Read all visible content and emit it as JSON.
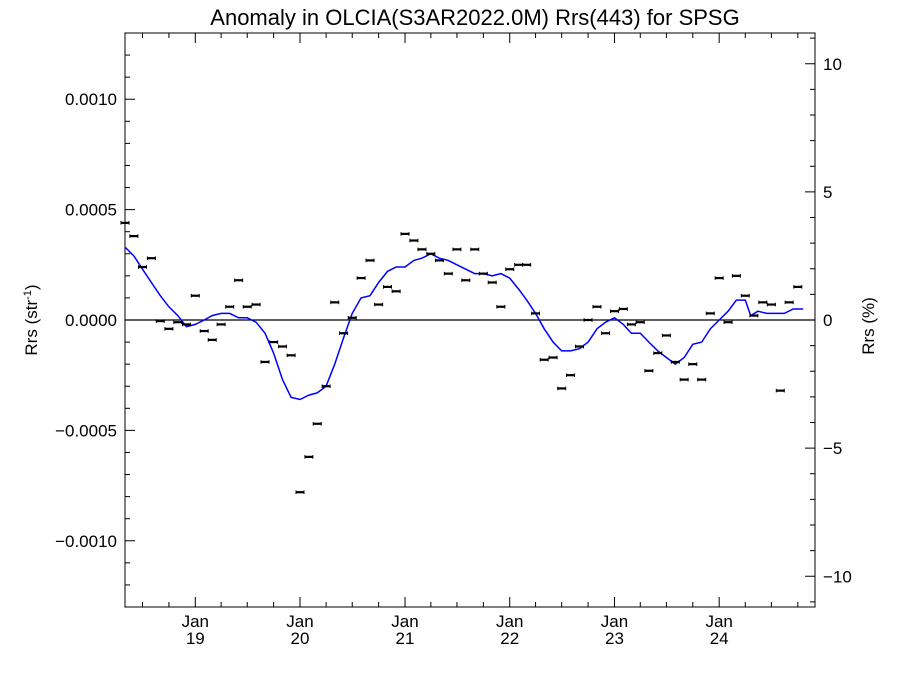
{
  "chart_data": {
    "type": "scatter",
    "title": "Anomaly in OLCIA(S3AR2022.0M) Rrs(443) for SPSG",
    "ylabel_left": "Rrs (str",
    "ylabel_left_sup": "-1",
    "ylabel_left_close": ")",
    "ylabel_right": "Rrs (%)",
    "xlim": [
      "2018-05-01",
      "2024-11-30"
    ],
    "ylim_left": [
      -0.0013,
      0.0013
    ],
    "ylim_right": [
      -11.2,
      11.2
    ],
    "grid": false,
    "left_ticks": [
      {
        "value": -0.001,
        "label": "−0.0010"
      },
      {
        "value": -0.0005,
        "label": "−0.0005"
      },
      {
        "value": 0,
        "label": "0.0000"
      },
      {
        "value": 0.0005,
        "label": "0.0005"
      },
      {
        "value": 0.001,
        "label": "0.0010"
      }
    ],
    "right_ticks": [
      {
        "value": -10,
        "label": "−10"
      },
      {
        "value": -5,
        "label": "−5"
      },
      {
        "value": 0,
        "label": "0"
      },
      {
        "value": 5,
        "label": "5"
      },
      {
        "value": 10,
        "label": "10"
      }
    ],
    "x_ticks": [
      {
        "value": "2019-01-01",
        "label1": "Jan",
        "label2": "19"
      },
      {
        "value": "2020-01-01",
        "label1": "Jan",
        "label2": "20"
      },
      {
        "value": "2021-01-01",
        "label1": "Jan",
        "label2": "21"
      },
      {
        "value": "2022-01-01",
        "label1": "Jan",
        "label2": "22"
      },
      {
        "value": "2023-01-01",
        "label1": "Jan",
        "label2": "23"
      },
      {
        "value": "2024-01-01",
        "label1": "Jan",
        "label2": "24"
      }
    ],
    "zero_line": 0,
    "series": [
      {
        "kind": "monthly_anomaly_points",
        "color": "#000000",
        "points": [
          [
            "2018-05-01",
            0.00044
          ],
          [
            "2018-06-01",
            0.00038
          ],
          [
            "2018-07-01",
            0.00024
          ],
          [
            "2018-08-01",
            0.00028
          ],
          [
            "2018-09-01",
            -5e-06
          ],
          [
            "2018-10-01",
            -4e-05
          ],
          [
            "2018-11-01",
            -1e-05
          ],
          [
            "2018-12-01",
            -2e-05
          ],
          [
            "2019-01-01",
            0.00011
          ],
          [
            "2019-02-01",
            -5e-05
          ],
          [
            "2019-03-01",
            -9e-05
          ],
          [
            "2019-04-01",
            -2e-05
          ],
          [
            "2019-05-01",
            6e-05
          ],
          [
            "2019-06-01",
            0.00018
          ],
          [
            "2019-07-01",
            6e-05
          ],
          [
            "2019-08-01",
            7e-05
          ],
          [
            "2019-09-01",
            -0.00019
          ],
          [
            "2019-10-01",
            -0.0001
          ],
          [
            "2019-11-01",
            -0.00012
          ],
          [
            "2019-12-01",
            -0.00016
          ],
          [
            "2020-01-01",
            -0.00078
          ],
          [
            "2020-02-01",
            -0.00062
          ],
          [
            "2020-03-01",
            -0.00047
          ],
          [
            "2020-04-01",
            -0.0003
          ],
          [
            "2020-05-01",
            8e-05
          ],
          [
            "2020-06-01",
            -6e-05
          ],
          [
            "2020-07-01",
            1e-05
          ],
          [
            "2020-08-01",
            0.00019
          ],
          [
            "2020-09-01",
            0.00027
          ],
          [
            "2020-10-01",
            7e-05
          ],
          [
            "2020-11-01",
            0.00015
          ],
          [
            "2020-12-01",
            0.00013
          ],
          [
            "2021-01-01",
            0.00039
          ],
          [
            "2021-02-01",
            0.00036
          ],
          [
            "2021-03-01",
            0.00032
          ],
          [
            "2021-04-01",
            0.0003
          ],
          [
            "2021-05-01",
            0.00027
          ],
          [
            "2021-06-01",
            0.00021
          ],
          [
            "2021-07-01",
            0.00032
          ],
          [
            "2021-08-01",
            0.00018
          ],
          [
            "2021-09-01",
            0.00032
          ],
          [
            "2021-10-01",
            0.00021
          ],
          [
            "2021-11-01",
            0.00017
          ],
          [
            "2021-12-01",
            6e-05
          ],
          [
            "2022-01-01",
            0.00023
          ],
          [
            "2022-02-01",
            0.00025
          ],
          [
            "2022-03-01",
            0.00025
          ],
          [
            "2022-04-01",
            3e-05
          ],
          [
            "2022-05-01",
            -0.00018
          ],
          [
            "2022-06-01",
            -0.00017
          ],
          [
            "2022-07-01",
            -0.00031
          ],
          [
            "2022-08-01",
            -0.00025
          ],
          [
            "2022-09-01",
            -0.00012
          ],
          [
            "2022-10-01",
            0.0
          ],
          [
            "2022-11-01",
            6e-05
          ],
          [
            "2022-12-01",
            -6e-05
          ],
          [
            "2023-01-01",
            4e-05
          ],
          [
            "2023-02-01",
            5e-05
          ],
          [
            "2023-03-01",
            -2e-05
          ],
          [
            "2023-04-01",
            -1e-05
          ],
          [
            "2023-05-01",
            -0.00023
          ],
          [
            "2023-06-01",
            -0.00015
          ],
          [
            "2023-07-01",
            -7e-05
          ],
          [
            "2023-08-01",
            -0.00019
          ],
          [
            "2023-09-01",
            -0.00027
          ],
          [
            "2023-10-01",
            -0.0002
          ],
          [
            "2023-11-01",
            -0.00027
          ],
          [
            "2023-12-01",
            3e-05
          ],
          [
            "2024-01-01",
            0.00019
          ],
          [
            "2024-02-01",
            -1e-05
          ],
          [
            "2024-03-01",
            0.0002
          ],
          [
            "2024-04-01",
            0.00011
          ],
          [
            "2024-05-01",
            2e-05
          ],
          [
            "2024-06-01",
            8e-05
          ],
          [
            "2024-07-01",
            7e-05
          ],
          [
            "2024-08-01",
            -0.00032
          ],
          [
            "2024-09-01",
            8e-05
          ],
          [
            "2024-10-01",
            0.00015
          ]
        ]
      },
      {
        "kind": "running_mean_line",
        "color": "#0000ff",
        "points": [
          [
            "2018-05-01",
            0.00033
          ],
          [
            "2018-06-01",
            0.00029
          ],
          [
            "2018-07-01",
            0.00023
          ],
          [
            "2018-08-01",
            0.00017
          ],
          [
            "2018-09-01",
            0.00011
          ],
          [
            "2018-10-01",
            6e-05
          ],
          [
            "2018-11-01",
            2e-05
          ],
          [
            "2018-12-01",
            -3e-05
          ],
          [
            "2019-01-01",
            -2e-05
          ],
          [
            "2019-02-01",
            0.0
          ],
          [
            "2019-03-01",
            2e-05
          ],
          [
            "2019-04-01",
            3e-05
          ],
          [
            "2019-05-01",
            3e-05
          ],
          [
            "2019-06-01",
            1e-05
          ],
          [
            "2019-07-01",
            1e-05
          ],
          [
            "2019-08-01",
            -1e-05
          ],
          [
            "2019-09-01",
            -6e-05
          ],
          [
            "2019-10-01",
            -0.00015
          ],
          [
            "2019-11-01",
            -0.00027
          ],
          [
            "2019-12-01",
            -0.00035
          ],
          [
            "2020-01-01",
            -0.00036
          ],
          [
            "2020-02-01",
            -0.00034
          ],
          [
            "2020-03-01",
            -0.00033
          ],
          [
            "2020-04-01",
            -0.0003
          ],
          [
            "2020-05-01",
            -0.0002
          ],
          [
            "2020-06-01",
            -8e-05
          ],
          [
            "2020-07-01",
            3e-05
          ],
          [
            "2020-08-01",
            0.0001
          ],
          [
            "2020-09-01",
            0.00011
          ],
          [
            "2020-10-01",
            0.00017
          ],
          [
            "2020-11-01",
            0.00022
          ],
          [
            "2020-12-01",
            0.00024
          ],
          [
            "2021-01-01",
            0.00024
          ],
          [
            "2021-02-01",
            0.00027
          ],
          [
            "2021-03-01",
            0.00028
          ],
          [
            "2021-04-01",
            0.0003
          ],
          [
            "2021-05-01",
            0.00028
          ],
          [
            "2021-06-01",
            0.00027
          ],
          [
            "2021-07-01",
            0.00025
          ],
          [
            "2021-08-01",
            0.00023
          ],
          [
            "2021-09-01",
            0.00021
          ],
          [
            "2021-10-01",
            0.00021
          ],
          [
            "2021-11-01",
            0.0002
          ],
          [
            "2021-12-01",
            0.00021
          ],
          [
            "2022-01-01",
            0.00019
          ],
          [
            "2022-02-01",
            0.00014
          ],
          [
            "2022-03-01",
            9e-05
          ],
          [
            "2022-04-01",
            3e-05
          ],
          [
            "2022-05-01",
            -4e-05
          ],
          [
            "2022-06-01",
            -0.0001
          ],
          [
            "2022-07-01",
            -0.00014
          ],
          [
            "2022-08-01",
            -0.00014
          ],
          [
            "2022-09-01",
            -0.00013
          ],
          [
            "2022-10-01",
            -0.0001
          ],
          [
            "2022-11-01",
            -4e-05
          ],
          [
            "2022-12-01",
            -1e-05
          ],
          [
            "2023-01-01",
            1e-05
          ],
          [
            "2023-02-01",
            -2e-05
          ],
          [
            "2023-03-01",
            -6e-05
          ],
          [
            "2023-04-01",
            -6e-05
          ],
          [
            "2023-05-01",
            -0.0001
          ],
          [
            "2023-06-01",
            -0.00014
          ],
          [
            "2023-07-01",
            -0.00017
          ],
          [
            "2023-08-01",
            -0.0002
          ],
          [
            "2023-09-01",
            -0.00017
          ],
          [
            "2023-10-01",
            -0.00011
          ],
          [
            "2023-11-01",
            -0.0001
          ],
          [
            "2023-12-01",
            -4e-05
          ],
          [
            "2024-01-01",
            0.0
          ],
          [
            "2024-02-01",
            4e-05
          ],
          [
            "2024-03-01",
            9e-05
          ],
          [
            "2024-04-01",
            9e-05
          ],
          [
            "2024-04-20",
            2e-05
          ],
          [
            "2024-05-15",
            4e-05
          ],
          [
            "2024-06-15",
            3e-05
          ],
          [
            "2024-07-15",
            3e-05
          ],
          [
            "2024-08-15",
            3e-05
          ],
          [
            "2024-09-15",
            5e-05
          ],
          [
            "2024-10-20",
            5e-05
          ]
        ]
      }
    ]
  }
}
